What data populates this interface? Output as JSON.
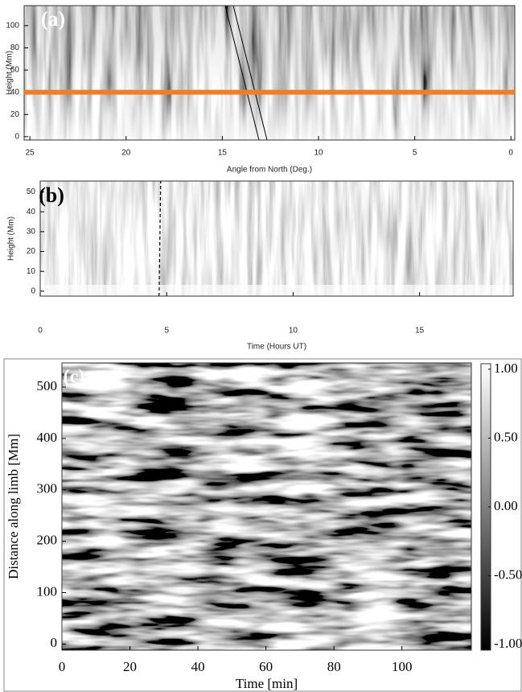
{
  "chart_data": [
    {
      "type": "image",
      "label": "(a)",
      "xlabel": "Angle from North (Deg.)",
      "ylabel": "Height (Mm)",
      "xlim": [
        25.3,
        -0.2
      ],
      "ylim": [
        -3,
        118
      ],
      "xticks": [
        25,
        20,
        15,
        10,
        5,
        0
      ],
      "yticks": [
        0,
        20,
        40,
        60,
        80,
        100
      ],
      "hline": 40,
      "hline_color": "#f07d2a"
    },
    {
      "type": "image",
      "label": "(b)",
      "xlabel": "Time (Hours UT)",
      "ylabel": "Height (Mm)",
      "xlim": [
        0,
        18.7
      ],
      "ylim": [
        -2.5,
        55.5
      ],
      "xticks": [
        0,
        5,
        10,
        15
      ],
      "yticks": [
        0,
        10,
        20,
        30,
        40,
        50
      ],
      "vline": 4.7,
      "vline_color": "#000000"
    },
    {
      "type": "image",
      "label": "(c)",
      "xlabel": "Time [min]",
      "ylabel": "Distance along limb [Mm]",
      "xlim": [
        0,
        120.4
      ],
      "ylim": [
        -12,
        547
      ],
      "xticks": [
        0,
        20,
        40,
        60,
        80,
        100
      ],
      "yticks": [
        0,
        100,
        200,
        300,
        400,
        500
      ],
      "colorbar": {
        "lim": [
          -1.04,
          1.04
        ],
        "ticks": [
          {
            "value": 1,
            "label": "1.00"
          },
          {
            "value": 0.5,
            "label": "0.50"
          },
          {
            "value": 0,
            "label": "0.00"
          },
          {
            "value": -0.5,
            "label": "-0.50"
          },
          {
            "value": -1,
            "label": "-1.00"
          }
        ]
      }
    }
  ]
}
